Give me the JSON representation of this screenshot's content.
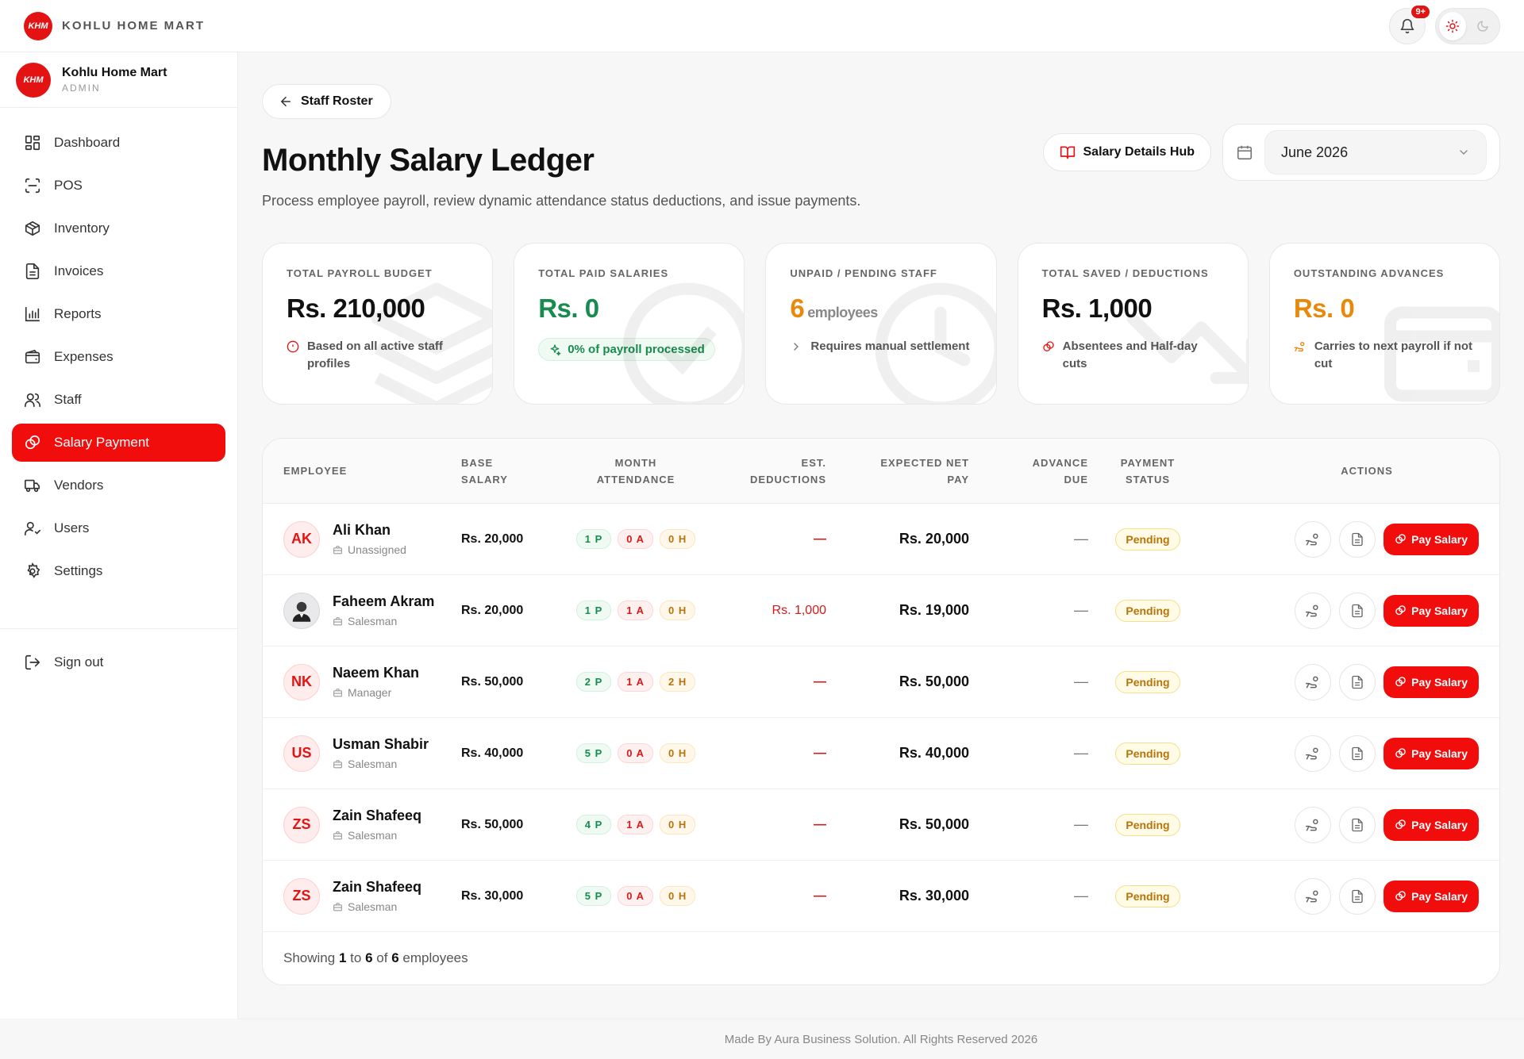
{
  "brand": {
    "name": "KOHLU HOME MART",
    "logo_text": "KHM"
  },
  "topbar": {
    "notifications_badge": "9+"
  },
  "profile": {
    "name": "Kohlu Home Mart",
    "role": "ADMIN"
  },
  "nav": {
    "items": [
      {
        "label": "Dashboard",
        "icon": "grid-icon"
      },
      {
        "label": "POS",
        "icon": "scan-icon"
      },
      {
        "label": "Inventory",
        "icon": "box-icon"
      },
      {
        "label": "Invoices",
        "icon": "file-icon"
      },
      {
        "label": "Reports",
        "icon": "bar-chart-icon"
      },
      {
        "label": "Expenses",
        "icon": "wallet-icon"
      },
      {
        "label": "Staff",
        "icon": "users-icon"
      },
      {
        "label": "Salary Payment",
        "icon": "coins-icon",
        "active": true
      },
      {
        "label": "Vendors",
        "icon": "truck-icon"
      },
      {
        "label": "Users",
        "icon": "user-check-icon"
      },
      {
        "label": "Settings",
        "icon": "gear-icon"
      }
    ],
    "sign_out": "Sign out"
  },
  "header": {
    "back_label": "Staff Roster",
    "title": "Monthly Salary Ledger",
    "subtitle": "Process employee payroll, review dynamic attendance status deductions, and issue payments.",
    "hub_label": "Salary Details Hub",
    "month_value": "June 2026"
  },
  "stats": [
    {
      "label": "TOTAL PAYROLL BUDGET",
      "value": "Rs. 210,000",
      "note": "Based on all active staff profiles"
    },
    {
      "label": "TOTAL PAID SALARIES",
      "value": "Rs. 0",
      "note": "0% of payroll processed"
    },
    {
      "label": "UNPAID / PENDING STAFF",
      "value": "6",
      "unit": "employees",
      "note": "Requires manual settlement"
    },
    {
      "label": "TOTAL SAVED / DEDUCTIONS",
      "value": "Rs. 1,000",
      "note": "Absentees and Half-day cuts"
    },
    {
      "label": "OUTSTANDING ADVANCES",
      "value": "Rs. 0",
      "note": "Carries to next payroll if not cut"
    }
  ],
  "colors": {
    "accent": "#f20d0d",
    "green": "#188c4f",
    "amber": "#e8890c"
  },
  "table": {
    "headers": {
      "employee": "EMPLOYEE",
      "base_1": "BASE",
      "base_2": "SALARY",
      "att_1": "MONTH",
      "att_2": "ATTENDANCE",
      "ded_1": "EST.",
      "ded_2": "DEDUCTIONS",
      "net_1": "EXPECTED NET",
      "net_2": "PAY",
      "adv_1": "ADVANCE",
      "adv_2": "DUE",
      "status_1": "PAYMENT",
      "status_2": "STATUS",
      "actions": "ACTIONS"
    },
    "pay_label": "Pay Salary",
    "rows": [
      {
        "initials": "AK",
        "name": "Ali Khan",
        "role": "Unassigned",
        "base": "Rs. 20,000",
        "p": "1 P",
        "a": "0 A",
        "h": "0 H",
        "ded": "—",
        "net": "Rs. 20,000",
        "adv": "—",
        "status": "Pending"
      },
      {
        "initials": "",
        "name": "Faheem Akram",
        "role": "Salesman",
        "base": "Rs. 20,000",
        "p": "1 P",
        "a": "1 A",
        "h": "0 H",
        "ded": "Rs. 1,000",
        "net": "Rs. 19,000",
        "adv": "—",
        "status": "Pending"
      },
      {
        "initials": "NK",
        "name": "Naeem Khan",
        "role": "Manager",
        "base": "Rs. 50,000",
        "p": "2 P",
        "a": "1 A",
        "h": "2 H",
        "ded": "—",
        "net": "Rs. 50,000",
        "adv": "—",
        "status": "Pending"
      },
      {
        "initials": "US",
        "name": "Usman Shabir",
        "role": "Salesman",
        "base": "Rs. 40,000",
        "p": "5 P",
        "a": "0 A",
        "h": "0 H",
        "ded": "—",
        "net": "Rs. 40,000",
        "adv": "—",
        "status": "Pending"
      },
      {
        "initials": "ZS",
        "name": "Zain Shafeeq",
        "role": "Salesman",
        "base": "Rs. 50,000",
        "p": "4 P",
        "a": "1 A",
        "h": "0 H",
        "ded": "—",
        "net": "Rs. 50,000",
        "adv": "—",
        "status": "Pending"
      },
      {
        "initials": "ZS",
        "name": "Zain Shafeeq",
        "role": "Salesman",
        "base": "Rs. 30,000",
        "p": "5 P",
        "a": "0 A",
        "h": "0 H",
        "ded": "—",
        "net": "Rs. 30,000",
        "adv": "—",
        "status": "Pending"
      }
    ],
    "footer": {
      "prefix": "Showing",
      "from": "1",
      "to_word": "to",
      "to": "6",
      "of_word": "of",
      "total": "6",
      "suffix": "employees"
    }
  },
  "footer": "Made By Aura Business Solution. All Rights Reserved 2026"
}
